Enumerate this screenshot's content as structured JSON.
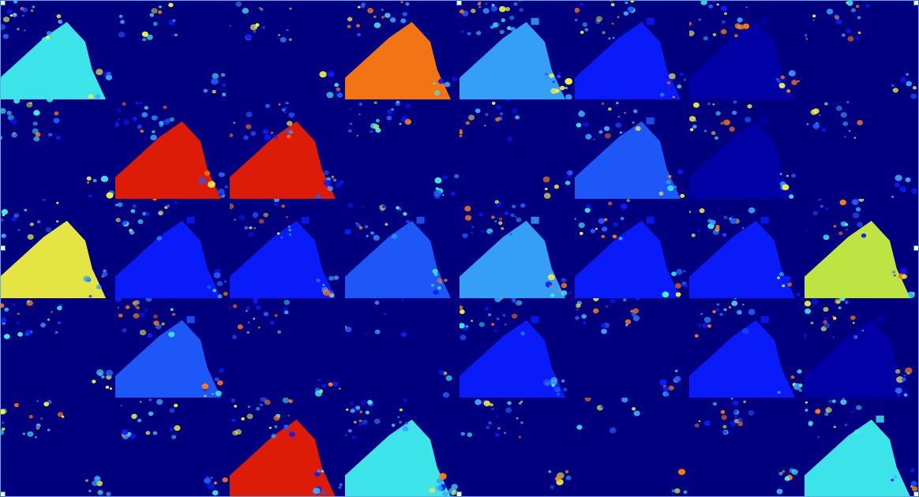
{
  "image": {
    "description_kind": "feature-map-mosaic",
    "rows": 5,
    "cols": 8,
    "colormap": "jet",
    "colors": {
      "deep": "#00007f",
      "dark_blue": "#0000a8",
      "blue": "#0a1cff",
      "mid_blue": "#1f5cff",
      "sky": "#38a8ff",
      "cyan": "#3ff0f0",
      "yellow": "#f0f040",
      "yellow_green": "#c8f040",
      "orange": "#ff7a10",
      "red": "#e81e00"
    },
    "tiles": [
      {
        "field": "cyan",
        "level": 0.55,
        "noise": 0.35
      },
      {
        "field": "deep",
        "level": 0.05,
        "noise": 0.25
      },
      {
        "field": "deep",
        "level": 0.08,
        "noise": 0.3
      },
      {
        "field": "orange",
        "level": 0.8,
        "noise": 0.3
      },
      {
        "field": "sky",
        "level": 0.45,
        "noise": 0.55
      },
      {
        "field": "blue",
        "level": 0.25,
        "noise": 0.35
      },
      {
        "field": "dark_blue",
        "level": 0.12,
        "noise": 0.4
      },
      {
        "field": "deep",
        "level": 0.06,
        "noise": 0.35
      },
      {
        "field": "deep",
        "level": 0.05,
        "noise": 0.35
      },
      {
        "field": "red",
        "level": 0.9,
        "noise": 0.4
      },
      {
        "field": "red",
        "level": 0.9,
        "noise": 0.4
      },
      {
        "field": "deep",
        "level": 0.08,
        "noise": 0.4
      },
      {
        "field": "deep",
        "level": 0.06,
        "noise": 0.3
      },
      {
        "field": "mid_blue",
        "level": 0.35,
        "noise": 0.35
      },
      {
        "field": "dark_blue",
        "level": 0.15,
        "noise": 0.3
      },
      {
        "field": "deep",
        "level": 0.05,
        "noise": 0.3
      },
      {
        "field": "yellow",
        "level": 0.7,
        "noise": 0.25
      },
      {
        "field": "blue",
        "level": 0.2,
        "noise": 0.35
      },
      {
        "field": "blue",
        "level": 0.22,
        "noise": 0.35
      },
      {
        "field": "mid_blue",
        "level": 0.3,
        "noise": 0.4
      },
      {
        "field": "sky",
        "level": 0.4,
        "noise": 0.45
      },
      {
        "field": "blue",
        "level": 0.2,
        "noise": 0.35
      },
      {
        "field": "blue",
        "level": 0.22,
        "noise": 0.3
      },
      {
        "field": "yellow_green",
        "level": 0.65,
        "noise": 0.3
      },
      {
        "field": "deep",
        "level": 0.06,
        "noise": 0.4
      },
      {
        "field": "mid_blue",
        "level": 0.32,
        "noise": 0.4
      },
      {
        "field": "deep",
        "level": 0.07,
        "noise": 0.35
      },
      {
        "field": "deep",
        "level": 0.03,
        "noise": 0.05
      },
      {
        "field": "blue",
        "level": 0.22,
        "noise": 0.45
      },
      {
        "field": "deep",
        "level": 0.06,
        "noise": 0.4
      },
      {
        "field": "blue",
        "level": 0.25,
        "noise": 0.35
      },
      {
        "field": "dark_blue",
        "level": 0.15,
        "noise": 0.4
      },
      {
        "field": "deep",
        "level": 0.08,
        "noise": 0.35
      },
      {
        "field": "deep",
        "level": 0.07,
        "noise": 0.35
      },
      {
        "field": "red",
        "level": 0.92,
        "noise": 0.4
      },
      {
        "field": "cyan",
        "level": 0.55,
        "noise": 0.55
      },
      {
        "field": "deep",
        "level": 0.06,
        "noise": 0.35
      },
      {
        "field": "deep",
        "level": 0.02,
        "noise": 0.05
      },
      {
        "field": "deep",
        "level": 0.06,
        "noise": 0.35
      },
      {
        "field": "cyan",
        "level": 0.5,
        "noise": 0.35
      }
    ]
  }
}
